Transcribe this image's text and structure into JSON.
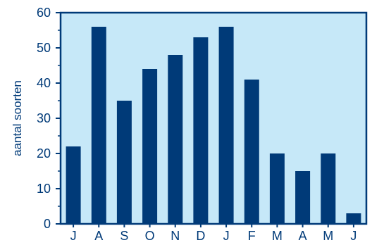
{
  "chart_data": {
    "type": "bar",
    "categories": [
      "J",
      "A",
      "S",
      "O",
      "N",
      "D",
      "J",
      "F",
      "M",
      "A",
      "M",
      "J"
    ],
    "values": [
      22,
      56,
      35,
      44,
      48,
      53,
      56,
      41,
      20,
      15,
      20,
      3
    ],
    "xlabel": "",
    "ylabel": "aantal soorten",
    "ylim": [
      0,
      60
    ],
    "yticks": [
      0,
      10,
      20,
      30,
      40,
      50,
      60
    ],
    "grid": false,
    "legend": "none",
    "colors": {
      "bar": "#003a78",
      "plot_background": "#c6e8f8",
      "axis": "#003a78",
      "text": "#003a78"
    }
  }
}
